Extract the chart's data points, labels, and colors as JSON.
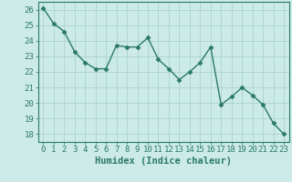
{
  "x": [
    0,
    1,
    2,
    3,
    4,
    5,
    6,
    7,
    8,
    9,
    10,
    11,
    12,
    13,
    14,
    15,
    16,
    17,
    18,
    19,
    20,
    21,
    22,
    23
  ],
  "y": [
    26.1,
    25.1,
    24.6,
    23.3,
    22.6,
    22.2,
    22.2,
    23.7,
    23.6,
    23.6,
    24.2,
    22.8,
    22.2,
    21.5,
    22.0,
    22.6,
    23.6,
    19.9,
    20.4,
    21.0,
    20.5,
    19.9,
    18.7,
    18.0
  ],
  "line_color": "#2a7a6a",
  "marker": "D",
  "markersize": 2.5,
  "bg_color": "#cceae8",
  "grid_color": "#aad4d0",
  "axis_color": "#2a7a6a",
  "xlabel": "Humidex (Indice chaleur)",
  "xlabel_fontsize": 7.5,
  "tick_fontsize": 6.5,
  "ylim": [
    17.5,
    26.5
  ],
  "yticks": [
    18,
    19,
    20,
    21,
    22,
    23,
    24,
    25,
    26
  ],
  "xlim": [
    -0.5,
    23.5
  ],
  "linewidth": 1.0
}
